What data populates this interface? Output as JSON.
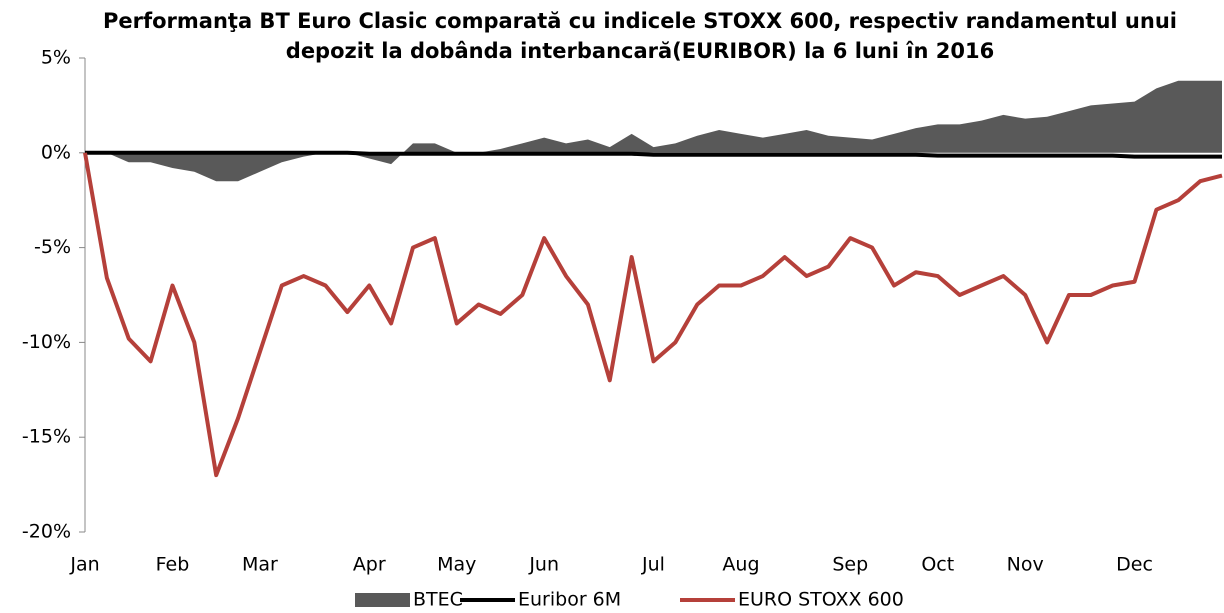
{
  "chart_data": {
    "type": "line",
    "title": "Performanţa BT Euro Clasic comparată cu indicele STOXX 600, respectiv randamentul unui depozit la dobânda interbancară(EURIBOR) la 6 luni în 2016",
    "categories": [
      "Jan",
      null,
      null,
      null,
      "Feb",
      null,
      null,
      null,
      "Mar",
      null,
      null,
      null,
      null,
      "Apr",
      null,
      null,
      null,
      "May",
      null,
      null,
      null,
      "Jun",
      null,
      null,
      null,
      null,
      "Jul",
      null,
      null,
      null,
      "Aug",
      null,
      null,
      null,
      null,
      "Sep",
      null,
      null,
      null,
      "Oct",
      null,
      null,
      null,
      "Nov",
      null,
      null,
      null,
      null,
      "Dec",
      null,
      null,
      null,
      null
    ],
    "series": [
      {
        "name": "BTEC",
        "kind": "area",
        "color": "#595959",
        "values": [
          0,
          0,
          -0.5,
          -0.5,
          -0.8,
          -1,
          -1.5,
          -1.5,
          -1,
          -0.5,
          -0.2,
          0,
          0,
          -0.3,
          -0.6,
          0.5,
          0.5,
          0,
          0,
          0.2,
          0.5,
          0.8,
          0.5,
          0.7,
          0.3,
          1,
          0.3,
          0.5,
          0.9,
          1.2,
          1,
          0.8,
          1,
          1.2,
          0.9,
          0.8,
          0.7,
          1,
          1.3,
          1.5,
          1.5,
          1.7,
          2,
          1.8,
          1.9,
          2.2,
          2.5,
          2.6,
          2.7,
          3.4,
          3.8,
          3.8,
          3.8
        ]
      },
      {
        "name": "Euribor 6M",
        "kind": "line",
        "color": "#000000",
        "values": [
          0,
          0,
          0,
          0,
          0,
          0,
          0,
          0,
          0,
          0,
          0,
          0,
          0,
          -0.05,
          -0.05,
          -0.05,
          -0.05,
          -0.05,
          -0.05,
          -0.05,
          -0.05,
          -0.05,
          -0.05,
          -0.05,
          -0.05,
          -0.05,
          -0.1,
          -0.1,
          -0.1,
          -0.1,
          -0.1,
          -0.1,
          -0.1,
          -0.1,
          -0.1,
          -0.1,
          -0.1,
          -0.1,
          -0.1,
          -0.15,
          -0.15,
          -0.15,
          -0.15,
          -0.15,
          -0.15,
          -0.15,
          -0.15,
          -0.15,
          -0.2,
          -0.2,
          -0.2,
          -0.2,
          -0.2
        ]
      },
      {
        "name": "EURO STOXX 600",
        "kind": "line",
        "color": "#b5403a",
        "values": [
          0,
          -6.6,
          -9.8,
          -11,
          -7,
          -10,
          -17,
          -14,
          -10.5,
          -7,
          -6.5,
          -7,
          -8.4,
          -7,
          -9,
          -5,
          -4.5,
          -9,
          -8,
          -8.5,
          -7.5,
          -4.5,
          -6.5,
          -8,
          -12,
          -5.5,
          -11,
          -10,
          -8,
          -7,
          -7,
          -6.5,
          -5.5,
          -6.5,
          -6,
          -4.5,
          -5,
          -7,
          -6.3,
          -6.5,
          -7.5,
          -7,
          -6.5,
          -7.5,
          -10,
          -7.5,
          -7.5,
          -7,
          -6.8,
          -3,
          -2.5,
          -1.5,
          -1.2
        ]
      }
    ],
    "ylim": [
      -20,
      5
    ],
    "yticks": [
      {
        "value": -20,
        "label": "-20%"
      },
      {
        "value": -15,
        "label": "-15%"
      },
      {
        "value": -10,
        "label": "-10%"
      },
      {
        "value": -5,
        "label": "-5%"
      },
      {
        "value": 0,
        "label": "0%"
      },
      {
        "value": 5,
        "label": "5%"
      }
    ],
    "negative_tick_color": "#e0201b",
    "legend": "bottom"
  }
}
